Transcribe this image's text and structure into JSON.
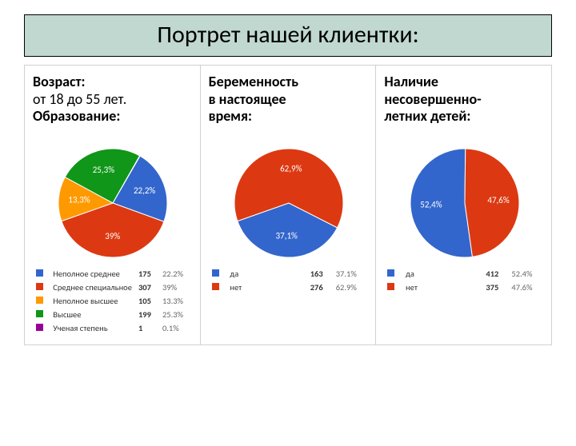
{
  "title": "Портрет нашей клиентки:",
  "title_bg": "#c0d8d0",
  "columns": [
    {
      "header_lines": [
        {
          "text": "Возраст:",
          "bold": true
        },
        {
          "text": "от 18 до 55 лет.",
          "bold": false
        },
        {
          "text": "Образование:",
          "bold": true
        }
      ],
      "pie": {
        "radius": 68,
        "slices": [
          {
            "label": "Неполное среднее",
            "value": 175,
            "pct": 22.2,
            "color": "#3366cc",
            "label_show": "22,2%"
          },
          {
            "label": "Среднее специальное",
            "value": 307,
            "pct": 39.0,
            "color": "#dc3912",
            "label_show": "39%"
          },
          {
            "label": "Неполное высшее",
            "value": 105,
            "pct": 13.3,
            "color": "#ff9900",
            "label_show": "13,3%"
          },
          {
            "label": "Высшее",
            "value": 199,
            "pct": 25.3,
            "color": "#109618",
            "label_show": "25,3%"
          },
          {
            "label": "Ученая степень",
            "value": 1,
            "pct": 0.1,
            "color": "#990099",
            "label_show": null
          }
        ],
        "start_angle": 30
      },
      "legend_table": [
        {
          "swatch": "#3366cc",
          "label": "Неполное среднее",
          "count": "175",
          "pct": "22.2%"
        },
        {
          "swatch": "#dc3912",
          "label": "Среднее специальное",
          "count": "307",
          "pct": "39%"
        },
        {
          "swatch": "#ff9900",
          "label": "Неполное высшее",
          "count": "105",
          "pct": "13.3%"
        },
        {
          "swatch": "#109618",
          "label": "Высшее",
          "count": "199",
          "pct": "25.3%"
        },
        {
          "swatch": "#990099",
          "label": "Ученая степень",
          "count": "1",
          "pct": "0.1%"
        }
      ]
    },
    {
      "header_lines": [
        {
          "text": "Беременность",
          "bold": true
        },
        {
          "text": "в настоящее",
          "bold": true
        },
        {
          "text": "время:",
          "bold": true
        }
      ],
      "pie": {
        "radius": 68,
        "slices": [
          {
            "label": "да",
            "value": 163,
            "pct": 37.1,
            "color": "#3366cc",
            "label_show": "37,1%"
          },
          {
            "label": "нет",
            "value": 276,
            "pct": 62.9,
            "color": "#dc3912",
            "label_show": "62,9%"
          }
        ],
        "start_angle": 117
      },
      "legend_table": [
        {
          "swatch": "#3366cc",
          "label": "да",
          "count": "163",
          "pct": "37.1%"
        },
        {
          "swatch": "#dc3912",
          "label": "нет",
          "count": "276",
          "pct": "62.9%"
        }
      ]
    },
    {
      "header_lines": [
        {
          "text": "Наличие",
          "bold": true
        },
        {
          "text": "несовершенно-",
          "bold": true
        },
        {
          "text": "летних детей:",
          "bold": true
        }
      ],
      "pie": {
        "radius": 68,
        "slices": [
          {
            "label": "да",
            "value": 412,
            "pct": 52.4,
            "color": "#3366cc",
            "label_show": "52,4%"
          },
          {
            "label": "нет",
            "value": 375,
            "pct": 47.6,
            "color": "#dc3912",
            "label_show": "47,6%"
          }
        ],
        "start_angle": 172
      },
      "legend_table": [
        {
          "swatch": "#3366cc",
          "label": "да",
          "count": "412",
          "pct": "52.4%"
        },
        {
          "swatch": "#dc3912",
          "label": "нет",
          "count": "375",
          "pct": "47.6%"
        }
      ]
    }
  ]
}
